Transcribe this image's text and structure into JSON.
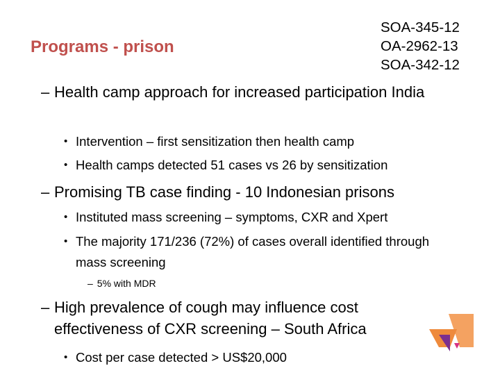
{
  "title": "Programs - prison",
  "codes": [
    "SOA-345-12",
    "OA-2962-13",
    "SOA-342-12"
  ],
  "bullets": [
    {
      "text": "Health camp approach for increased participation India",
      "sub": [
        "Intervention – first sensitization then health camp",
        "Health camps detected 51 cases vs 26 by sensitization"
      ]
    },
    {
      "text": "Promising TB case finding - 10 Indonesian prisons",
      "sub": [
        "Instituted mass screening – symptoms, CXR and Xpert",
        "The majority 171/236 (72%) of cases overall identified through mass screening"
      ],
      "subsub": "5% with MDR"
    },
    {
      "text": "High prevalence of cough may influence cost effectiveness of CXR screening – South Africa",
      "sub": [
        "Cost per case detected > US$20,000"
      ]
    }
  ],
  "colors": {
    "title": "#c0504d",
    "logo_orange": "#f4a261",
    "logo_dark_orange": "#ee8a3c",
    "logo_purple": "#7b2f8e",
    "logo_pink": "#d63384"
  }
}
